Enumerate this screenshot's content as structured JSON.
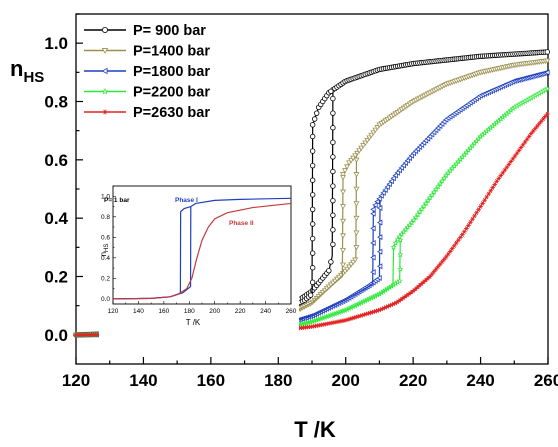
{
  "chart_data": [
    {
      "type": "line",
      "xlabel": "T /K",
      "ylabel": "n",
      "ylabel_sub": "HS",
      "xlim": [
        120,
        260
      ],
      "ylim": [
        -0.1,
        1.1
      ],
      "xticks": [
        "120",
        "140",
        "160",
        "180",
        "200",
        "220",
        "240",
        "260"
      ],
      "yticks": [
        "0.0",
        "0.2",
        "0.4",
        "0.6",
        "0.8",
        "1.0"
      ],
      "legend_placement": "top-left",
      "grid": false,
      "series": [
        {
          "name": "P=  900 bar",
          "color": "#000000",
          "marker": "circle",
          "hysteresis": {
            "heating": [
              [
                120,
                0.0
              ],
              [
                150,
                0.01
              ],
              [
                170,
                0.03
              ],
              [
                180,
                0.07
              ],
              [
                190,
                0.15
              ],
              [
                195,
                0.22
              ],
              [
                196,
                0.27
              ],
              [
                196.2,
                0.84
              ],
              [
                200,
                0.87
              ],
              [
                210,
                0.91
              ],
              [
                220,
                0.93
              ],
              [
                240,
                0.955
              ],
              [
                260,
                0.97
              ]
            ],
            "cooling": [
              [
                120,
                0.0
              ],
              [
                150,
                0.01
              ],
              [
                170,
                0.03
              ],
              [
                180,
                0.07
              ],
              [
                188,
                0.12
              ],
              [
                190,
                0.14
              ],
              [
                190.2,
                0.72
              ],
              [
                192,
                0.78
              ],
              [
                195,
                0.83
              ],
              [
                196.2,
                0.84
              ]
            ]
          }
        },
        {
          "name": "P=1400 bar",
          "color": "#9a8f4e",
          "marker": "triangle-down",
          "hysteresis": {
            "heating": [
              [
                120,
                0.0
              ],
              [
                150,
                0.005
              ],
              [
                170,
                0.02
              ],
              [
                180,
                0.05
              ],
              [
                190,
                0.11
              ],
              [
                200,
                0.22
              ],
              [
                203,
                0.26
              ],
              [
                203.2,
                0.62
              ],
              [
                210,
                0.72
              ],
              [
                220,
                0.8
              ],
              [
                230,
                0.86
              ],
              [
                240,
                0.9
              ],
              [
                250,
                0.925
              ],
              [
                260,
                0.94
              ]
            ],
            "cooling": [
              [
                120,
                0.0
              ],
              [
                150,
                0.005
              ],
              [
                170,
                0.02
              ],
              [
                180,
                0.05
              ],
              [
                190,
                0.11
              ],
              [
                198,
                0.19
              ],
              [
                199,
                0.2
              ],
              [
                199.2,
                0.55
              ],
              [
                201,
                0.59
              ],
              [
                203.2,
                0.62
              ]
            ]
          }
        },
        {
          "name": "P=1800 bar",
          "color": "#1e3fbf",
          "marker": "triangle-left",
          "hysteresis": {
            "heating": [
              [
                120,
                0.0
              ],
              [
                150,
                0.003
              ],
              [
                170,
                0.012
              ],
              [
                180,
                0.03
              ],
              [
                190,
                0.065
              ],
              [
                200,
                0.12
              ],
              [
                207,
                0.17
              ],
              [
                210,
                0.195
              ],
              [
                210.2,
                0.47
              ],
              [
                215,
                0.55
              ],
              [
                220,
                0.62
              ],
              [
                230,
                0.74
              ],
              [
                240,
                0.82
              ],
              [
                250,
                0.87
              ],
              [
                260,
                0.9
              ]
            ],
            "cooling": [
              [
                120,
                0.0
              ],
              [
                150,
                0.003
              ],
              [
                170,
                0.012
              ],
              [
                180,
                0.03
              ],
              [
                190,
                0.065
              ],
              [
                200,
                0.12
              ],
              [
                206,
                0.16
              ],
              [
                208,
                0.175
              ],
              [
                208.2,
                0.43
              ],
              [
                209,
                0.45
              ],
              [
                210.2,
                0.47
              ]
            ]
          }
        },
        {
          "name": "P=2200 bar",
          "color": "#2ee83a",
          "marker": "star",
          "hysteresis": {
            "heating": [
              [
                120,
                0.0
              ],
              [
                150,
                0.002
              ],
              [
                170,
                0.008
              ],
              [
                180,
                0.02
              ],
              [
                190,
                0.045
              ],
              [
                200,
                0.085
              ],
              [
                210,
                0.14
              ],
              [
                216,
                0.185
              ],
              [
                216.2,
                0.34
              ],
              [
                220,
                0.39
              ],
              [
                230,
                0.55
              ],
              [
                240,
                0.68
              ],
              [
                250,
                0.78
              ],
              [
                260,
                0.845
              ]
            ],
            "cooling": [
              [
                120,
                0.0
              ],
              [
                150,
                0.002
              ],
              [
                170,
                0.008
              ],
              [
                180,
                0.02
              ],
              [
                190,
                0.045
              ],
              [
                200,
                0.085
              ],
              [
                210,
                0.14
              ],
              [
                214,
                0.17
              ],
              [
                214.2,
                0.3
              ],
              [
                215,
                0.32
              ],
              [
                216.2,
                0.34
              ]
            ]
          }
        },
        {
          "name": "P=2630 bar",
          "color": "#e32222",
          "marker": "asterisk",
          "curve": [
            [
              120,
              0.0
            ],
            [
              140,
              0.001
            ],
            [
              160,
              0.004
            ],
            [
              170,
              0.008
            ],
            [
              180,
              0.015
            ],
            [
              190,
              0.028
            ],
            [
              200,
              0.05
            ],
            [
              210,
              0.085
            ],
            [
              215,
              0.11
            ],
            [
              220,
              0.15
            ],
            [
              225,
              0.2
            ],
            [
              230,
              0.27
            ],
            [
              235,
              0.35
            ],
            [
              240,
              0.44
            ],
            [
              245,
              0.53
            ],
            [
              250,
              0.61
            ],
            [
              255,
              0.69
            ],
            [
              260,
              0.76
            ]
          ]
        }
      ]
    },
    {
      "type": "line",
      "title": "P= 1 bar",
      "xlabel": "T /K",
      "ylabel": "n",
      "ylabel_sub": "HS",
      "xlim": [
        120,
        260
      ],
      "ylim": [
        -0.05,
        1.1
      ],
      "xticks": [
        "120",
        "140",
        "160",
        "180",
        "200",
        "220",
        "240",
        "260"
      ],
      "yticks": [
        "0.0",
        "0.2",
        "0.4",
        "0.6",
        "0.8",
        "1.0"
      ],
      "annotations": [
        "Phase I",
        "Phase II"
      ],
      "series": [
        {
          "name": "Phase I",
          "color": "#1e3fbf",
          "hysteresis": {
            "heating": [
              [
                120,
                0.0
              ],
              [
                150,
                0.005
              ],
              [
                165,
                0.02
              ],
              [
                175,
                0.06
              ],
              [
                181,
                0.12
              ],
              [
                181.2,
                0.9
              ],
              [
                185,
                0.93
              ],
              [
                200,
                0.96
              ],
              [
                220,
                0.97
              ],
              [
                260,
                0.98
              ]
            ],
            "cooling": [
              [
                120,
                0.0
              ],
              [
                150,
                0.005
              ],
              [
                165,
                0.02
              ],
              [
                172,
                0.05
              ],
              [
                173,
                0.06
              ],
              [
                173.2,
                0.85
              ],
              [
                176,
                0.88
              ],
              [
                181.2,
                0.9
              ]
            ]
          }
        },
        {
          "name": "Phase II",
          "color": "#c43a3a",
          "curve": [
            [
              120,
              0.0
            ],
            [
              150,
              0.005
            ],
            [
              165,
              0.02
            ],
            [
              172,
              0.05
            ],
            [
              178,
              0.1
            ],
            [
              182,
              0.2
            ],
            [
              186,
              0.4
            ],
            [
              190,
              0.57
            ],
            [
              195,
              0.7
            ],
            [
              200,
              0.78
            ],
            [
              210,
              0.84
            ],
            [
              230,
              0.89
            ],
            [
              260,
              0.93
            ]
          ]
        }
      ]
    }
  ]
}
